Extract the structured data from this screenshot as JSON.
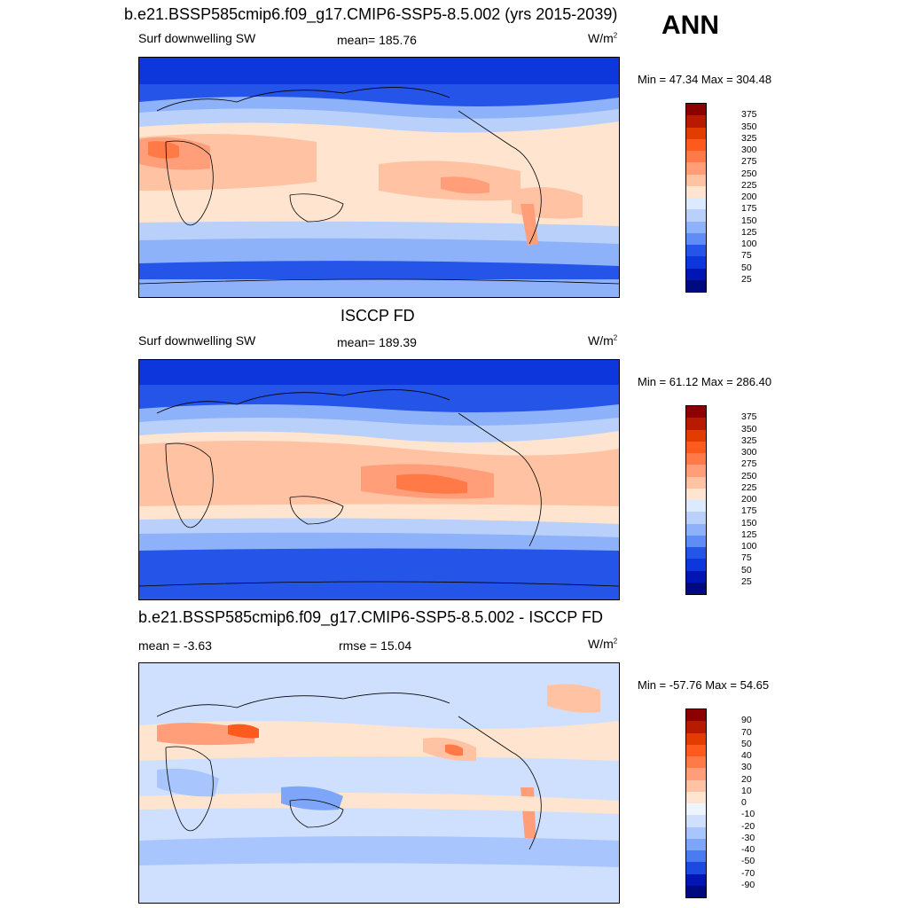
{
  "season": "ANN",
  "panels": [
    {
      "title": "b.e21.BSSP585cmip6.f09_g17.CMIP6-SSP5-8.5.002 (yrs 2015-2039)",
      "left_label": "Surf downwelling SW",
      "center_label": "mean= 185.76",
      "units": "W/m",
      "units_sup": "2",
      "minmax": "Min =  47.34 Max = 304.48",
      "colorbar_labels": [
        "375",
        "350",
        "325",
        "300",
        "275",
        "250",
        "225",
        "200",
        "175",
        "150",
        "125",
        "100",
        "75",
        "50",
        "25"
      ]
    },
    {
      "title": "ISCCP FD",
      "left_label": "Surf downwelling SW",
      "center_label": "mean= 189.39",
      "units": "W/m",
      "units_sup": "2",
      "minmax": "Min =  61.12 Max = 286.40",
      "colorbar_labels": [
        "375",
        "350",
        "325",
        "300",
        "275",
        "250",
        "225",
        "200",
        "175",
        "150",
        "125",
        "100",
        "75",
        "50",
        "25"
      ]
    },
    {
      "title": "b.e21.BSSP585cmip6.f09_g17.CMIP6-SSP5-8.5.002 - ISCCP FD",
      "left_label": "mean =  -3.63",
      "center_label": "rmse =  15.04",
      "units": "W/m",
      "units_sup": "2",
      "minmax": "Min = -57.76 Max =  54.65",
      "colorbar_labels": [
        "90",
        "70",
        "50",
        "40",
        "30",
        "20",
        "10",
        "0",
        "-10",
        "-20",
        "-30",
        "-40",
        "-50",
        "-70",
        "-90"
      ]
    }
  ],
  "colors": {
    "abs_scale": [
      "#8c0000",
      "#b81a00",
      "#e23c00",
      "#ff5a1e",
      "#ff7a46",
      "#ff9e78",
      "#ffc3a4",
      "#ffe4cf",
      "#dbeaff",
      "#b9d0fb",
      "#8eb2fa",
      "#5f8df5",
      "#2554e8",
      "#0d36dc",
      "#0015b4",
      "#000a80"
    ],
    "diff_scale": [
      "#8c0000",
      "#b81a00",
      "#e23c00",
      "#ff5a1e",
      "#ff7a46",
      "#ff9e78",
      "#ffc3a4",
      "#ffe4cf",
      "#eef5ff",
      "#cfe0ff",
      "#a9c5fd",
      "#7ea6f8",
      "#4b7bf0",
      "#1c49e0",
      "#0015b4",
      "#000a80"
    ]
  }
}
